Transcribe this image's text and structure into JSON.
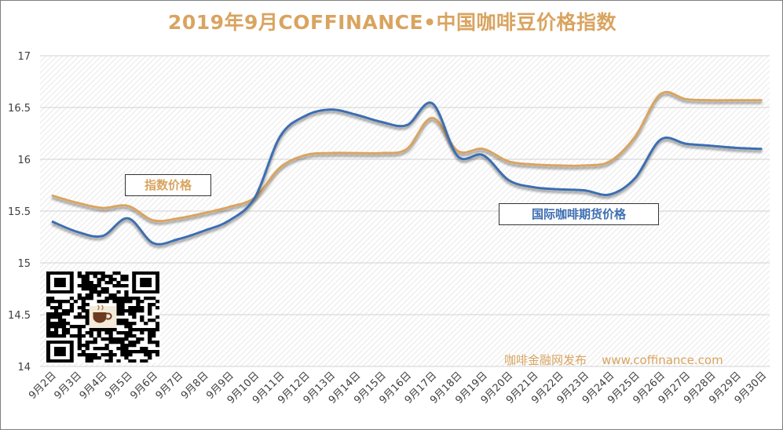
{
  "chart_data": {
    "type": "line",
    "title": "2019年9月COFFINANCE•中国咖啡豆价格指数",
    "categories": [
      "9月2日",
      "9月3日",
      "9月4日",
      "9月5日",
      "9月6日",
      "9月7日",
      "9月8日",
      "9月9日",
      "9月10日",
      "9月11日",
      "9月12日",
      "9月13日",
      "9月14日",
      "9月15日",
      "9月16日",
      "9月17日",
      "9月18日",
      "9月19日",
      "9月20日",
      "9月21日",
      "9月22日",
      "9月23日",
      "9月24日",
      "9月25日",
      "9月26日",
      "9月27日",
      "9月28日",
      "9月29日",
      "9月30日"
    ],
    "series": [
      {
        "name": "指数价格",
        "color": "#d9a460",
        "values": [
          15.65,
          15.58,
          15.53,
          15.55,
          15.41,
          15.43,
          15.48,
          15.54,
          15.63,
          15.92,
          16.04,
          16.06,
          16.06,
          16.06,
          16.1,
          16.4,
          16.08,
          16.1,
          15.98,
          15.95,
          15.94,
          15.94,
          15.98,
          16.22,
          16.63,
          16.58,
          16.57,
          16.57,
          16.57
        ]
      },
      {
        "name": "国际咖啡期货价格",
        "color": "#3d6eb0",
        "values": [
          15.4,
          15.3,
          15.26,
          15.43,
          15.19,
          15.23,
          15.31,
          15.41,
          15.63,
          16.22,
          16.42,
          16.48,
          16.43,
          16.36,
          16.33,
          16.54,
          16.03,
          16.04,
          15.8,
          15.73,
          15.71,
          15.7,
          15.66,
          15.82,
          16.19,
          16.15,
          16.13,
          16.11,
          16.1
        ]
      }
    ],
    "ylim": [
      14,
      17
    ],
    "yticks": [
      "14",
      "14.5",
      "15",
      "15.5",
      "16",
      "16.5",
      "17"
    ],
    "grid": true,
    "legend_placement": "inline"
  },
  "legend": {
    "index_label": "指数价格",
    "futures_label": "国际咖啡期货价格"
  },
  "watermark": {
    "text": "咖啡金融网发布    www.coffinance.com"
  },
  "qr": {
    "icon": "qr-code-icon"
  }
}
